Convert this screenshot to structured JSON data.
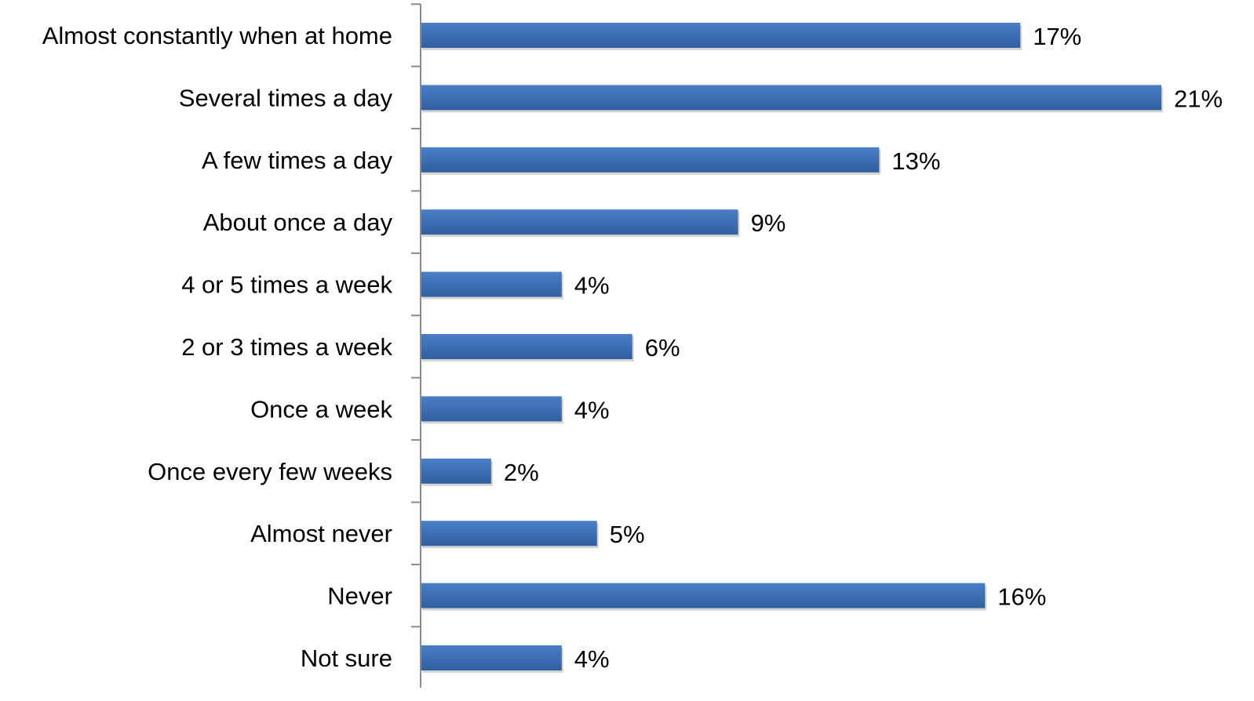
{
  "chart_data": {
    "type": "bar",
    "orientation": "horizontal",
    "categories": [
      "Almost constantly when at home",
      "Several times a day",
      "A few times a day",
      "About once a day",
      "4 or 5 times a week",
      "2 or 3 times a week",
      "Once a week",
      "Once every few weeks",
      "Almost never",
      "Never",
      "Not sure"
    ],
    "values": [
      17,
      21,
      13,
      9,
      4,
      6,
      4,
      2,
      5,
      16,
      4
    ],
    "value_labels": [
      "17%",
      "21%",
      "13%",
      "9%",
      "4%",
      "6%",
      "4%",
      "2%",
      "5%",
      "16%",
      "4%"
    ],
    "unit": "%",
    "title": "",
    "xlabel": "",
    "ylabel": "",
    "xlim": [
      0,
      21
    ],
    "grid": false,
    "legend": "none",
    "colors": {
      "bar_top": "#4a7fc7",
      "bar_bottom": "#2f5f9f",
      "bar_shadow": "#b0b0b0",
      "axis": "#8a8a8a"
    }
  }
}
